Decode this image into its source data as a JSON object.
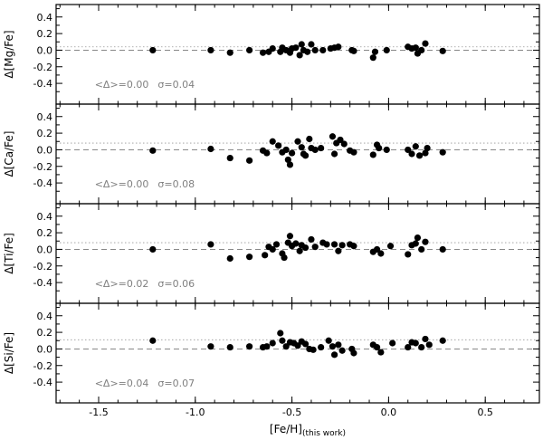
{
  "chart_data": {
    "type": "scatter",
    "x_label": "[Fe/H]",
    "x_label_subscript": "(this work)",
    "xlim": [
      -1.72,
      0.78
    ],
    "ylim": [
      -0.65,
      0.55
    ],
    "x_ticks": [
      -1.5,
      -1.0,
      -0.5,
      0.0,
      0.5
    ],
    "x_tick_labels": [
      "-1.5",
      "-1.0",
      "-0.5",
      "0.0",
      "0.5"
    ],
    "y_ticks": [
      -0.4,
      -0.2,
      0.0,
      0.2,
      0.4
    ],
    "y_tick_labels": [
      "-0.4",
      "-0.2",
      "0.0",
      "0.2",
      "0.4"
    ],
    "panels": [
      {
        "ylabel": "Δ[Mg/Fe]",
        "mean_text": "<Δ>=0.00",
        "sigma_text": "σ=0.04",
        "mean": 0.0,
        "sigma": 0.04,
        "points": [
          [
            -1.22,
            0.0
          ],
          [
            -0.92,
            0.0
          ],
          [
            -0.82,
            -0.03
          ],
          [
            -0.72,
            0.0
          ],
          [
            -0.65,
            -0.03
          ],
          [
            -0.62,
            -0.02
          ],
          [
            -0.6,
            0.02
          ],
          [
            -0.56,
            -0.02
          ],
          [
            -0.55,
            0.03
          ],
          [
            -0.53,
            0.0
          ],
          [
            -0.51,
            -0.03
          ],
          [
            -0.5,
            0.02
          ],
          [
            -0.48,
            0.03
          ],
          [
            -0.46,
            -0.06
          ],
          [
            -0.45,
            0.07
          ],
          [
            -0.44,
            0.0
          ],
          [
            -0.42,
            -0.02
          ],
          [
            -0.4,
            0.07
          ],
          [
            -0.38,
            0.0
          ],
          [
            -0.34,
            0.0
          ],
          [
            -0.3,
            0.02
          ],
          [
            -0.28,
            0.03
          ],
          [
            -0.26,
            0.04
          ],
          [
            -0.19,
            0.0
          ],
          [
            -0.18,
            -0.01
          ],
          [
            -0.08,
            -0.09
          ],
          [
            -0.07,
            -0.02
          ],
          [
            -0.01,
            0.0
          ],
          [
            0.1,
            0.04
          ],
          [
            0.12,
            0.02
          ],
          [
            0.14,
            0.03
          ],
          [
            0.15,
            -0.04
          ],
          [
            0.17,
            0.0
          ],
          [
            0.19,
            0.08
          ],
          [
            0.28,
            -0.01
          ]
        ]
      },
      {
        "ylabel": "Δ[Ca/Fe]",
        "mean_text": "<Δ>=0.00",
        "sigma_text": "σ=0.08",
        "mean": 0.0,
        "sigma": 0.08,
        "points": [
          [
            -1.22,
            -0.01
          ],
          [
            -0.92,
            0.01
          ],
          [
            -0.82,
            -0.1
          ],
          [
            -0.72,
            -0.13
          ],
          [
            -0.65,
            -0.01
          ],
          [
            -0.63,
            -0.04
          ],
          [
            -0.6,
            0.1
          ],
          [
            -0.57,
            0.05
          ],
          [
            -0.55,
            -0.03
          ],
          [
            -0.53,
            0.0
          ],
          [
            -0.52,
            -0.12
          ],
          [
            -0.51,
            -0.18
          ],
          [
            -0.5,
            -0.04
          ],
          [
            -0.47,
            0.1
          ],
          [
            -0.45,
            0.03
          ],
          [
            -0.44,
            -0.05
          ],
          [
            -0.43,
            -0.07
          ],
          [
            -0.41,
            0.13
          ],
          [
            -0.4,
            0.02
          ],
          [
            -0.38,
            0.0
          ],
          [
            -0.35,
            0.02
          ],
          [
            -0.29,
            0.16
          ],
          [
            -0.28,
            -0.05
          ],
          [
            -0.27,
            0.08
          ],
          [
            -0.25,
            0.12
          ],
          [
            -0.23,
            0.07
          ],
          [
            -0.2,
            -0.01
          ],
          [
            -0.18,
            -0.03
          ],
          [
            -0.08,
            -0.06
          ],
          [
            -0.06,
            0.06
          ],
          [
            -0.05,
            0.02
          ],
          [
            -0.01,
            0.0
          ],
          [
            0.1,
            0.0
          ],
          [
            0.12,
            -0.05
          ],
          [
            0.14,
            0.04
          ],
          [
            0.16,
            -0.07
          ],
          [
            0.19,
            -0.04
          ],
          [
            0.2,
            0.02
          ],
          [
            0.28,
            -0.03
          ]
        ]
      },
      {
        "ylabel": "Δ[Ti/Fe]",
        "mean_text": "<Δ>=0.02",
        "sigma_text": "σ=0.06",
        "mean": 0.02,
        "sigma": 0.06,
        "points": [
          [
            -1.22,
            0.0
          ],
          [
            -0.92,
            0.06
          ],
          [
            -0.82,
            -0.11
          ],
          [
            -0.72,
            -0.09
          ],
          [
            -0.64,
            -0.07
          ],
          [
            -0.62,
            0.03
          ],
          [
            -0.6,
            0.0
          ],
          [
            -0.58,
            0.06
          ],
          [
            -0.55,
            -0.05
          ],
          [
            -0.54,
            -0.1
          ],
          [
            -0.52,
            0.08
          ],
          [
            -0.51,
            0.16
          ],
          [
            -0.5,
            0.04
          ],
          [
            -0.48,
            0.07
          ],
          [
            -0.46,
            -0.02
          ],
          [
            -0.45,
            0.05
          ],
          [
            -0.43,
            0.02
          ],
          [
            -0.4,
            0.12
          ],
          [
            -0.38,
            0.03
          ],
          [
            -0.34,
            0.08
          ],
          [
            -0.32,
            0.06
          ],
          [
            -0.28,
            0.06
          ],
          [
            -0.26,
            -0.02
          ],
          [
            -0.24,
            0.05
          ],
          [
            -0.2,
            0.06
          ],
          [
            -0.18,
            0.04
          ],
          [
            -0.08,
            -0.03
          ],
          [
            -0.06,
            0.0
          ],
          [
            -0.04,
            -0.05
          ],
          [
            0.01,
            0.04
          ],
          [
            0.1,
            -0.06
          ],
          [
            0.12,
            0.05
          ],
          [
            0.14,
            0.07
          ],
          [
            0.15,
            0.14
          ],
          [
            0.17,
            0.0
          ],
          [
            0.19,
            0.09
          ],
          [
            0.28,
            0.0
          ]
        ]
      },
      {
        "ylabel": "Δ[Si/Fe]",
        "mean_text": "<Δ>=0.04",
        "sigma_text": "σ=0.07",
        "mean": 0.04,
        "sigma": 0.07,
        "points": [
          [
            -1.22,
            0.1
          ],
          [
            -0.92,
            0.03
          ],
          [
            -0.82,
            0.02
          ],
          [
            -0.72,
            0.03
          ],
          [
            -0.65,
            0.02
          ],
          [
            -0.63,
            0.03
          ],
          [
            -0.6,
            0.07
          ],
          [
            -0.56,
            0.19
          ],
          [
            -0.55,
            0.1
          ],
          [
            -0.53,
            0.03
          ],
          [
            -0.51,
            0.08
          ],
          [
            -0.49,
            0.07
          ],
          [
            -0.47,
            0.04
          ],
          [
            -0.45,
            0.09
          ],
          [
            -0.43,
            0.06
          ],
          [
            -0.41,
            0.0
          ],
          [
            -0.39,
            -0.01
          ],
          [
            -0.35,
            0.02
          ],
          [
            -0.31,
            0.1
          ],
          [
            -0.29,
            0.03
          ],
          [
            -0.28,
            -0.07
          ],
          [
            -0.26,
            0.05
          ],
          [
            -0.24,
            -0.02
          ],
          [
            -0.19,
            0.0
          ],
          [
            -0.18,
            -0.05
          ],
          [
            -0.08,
            0.05
          ],
          [
            -0.06,
            0.02
          ],
          [
            -0.04,
            -0.04
          ],
          [
            0.02,
            0.07
          ],
          [
            0.1,
            0.02
          ],
          [
            0.12,
            0.08
          ],
          [
            0.14,
            0.07
          ],
          [
            0.17,
            0.02
          ],
          [
            0.19,
            0.12
          ],
          [
            0.21,
            0.05
          ],
          [
            0.28,
            0.1
          ]
        ]
      }
    ]
  }
}
